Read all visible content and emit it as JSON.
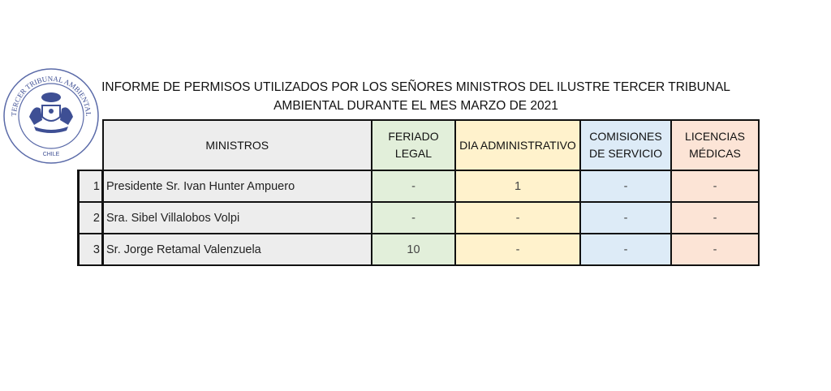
{
  "logo": {
    "text_top": "TERCER TRIBUNAL AMBIENTAL",
    "text_bottom": "CHILE"
  },
  "title": {
    "line1": "INFORME DE PERMISOS UTILIZADOS POR LOS SEÑORES MINISTROS DEL ILUSTRE TERCER TRIBUNAL",
    "line2": "AMBIENTAL DURANTE EL MES MARZO DE 2021"
  },
  "table": {
    "headers": [
      "MINISTROS",
      "FERIADO LEGAL",
      "DIA ADMINISTRATIVO",
      "COMISIONES DE SERVICIO",
      "LICENCIAS MÉDICAS"
    ],
    "header_lines": {
      "feriado": [
        "FERIADO",
        "LEGAL"
      ],
      "comisiones": [
        "COMISIONES",
        "DE SERVICIO"
      ],
      "licencias": [
        "LICENCIAS",
        "MÉDICAS"
      ]
    },
    "rows": [
      {
        "num": "1",
        "name": "Presidente Sr. Ivan Hunter Ampuero",
        "feriado": "-",
        "dia": "1",
        "comisiones": "-",
        "licencias": "-"
      },
      {
        "num": "2",
        "name": "Sra. Sibel Villalobos Volpi",
        "feriado": "-",
        "dia": "-",
        "comisiones": "-",
        "licencias": "-"
      },
      {
        "num": "3",
        "name": "Sr. Jorge Retamal Valenzuela",
        "feriado": "10",
        "dia": "-",
        "comisiones": "-",
        "licencias": "-"
      }
    ],
    "colors": {
      "names": "#ededed",
      "feriado": "#e2efda",
      "dia": "#fff2cc",
      "comisiones": "#ddebf7",
      "licencias": "#fce4d6"
    }
  }
}
